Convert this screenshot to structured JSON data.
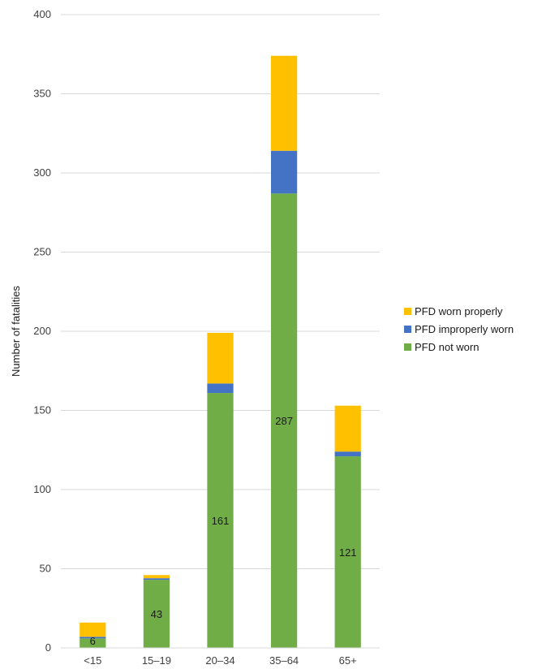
{
  "chart_data": {
    "type": "bar",
    "stacked": true,
    "categories": [
      "<15",
      "15–19",
      "20–34",
      "35–64",
      "65+"
    ],
    "series": [
      {
        "name": "PFD not worn",
        "values": [
          6,
          43,
          161,
          287,
          121
        ],
        "color": "#70ad47"
      },
      {
        "name": "PFD improperly worn",
        "values": [
          1,
          1,
          6,
          27,
          3
        ],
        "color": "#4472c4"
      },
      {
        "name": "PFD worn properly",
        "values": [
          9,
          2,
          32,
          60,
          29
        ],
        "color": "#ffc000"
      }
    ],
    "data_labels": {
      "series": "PFD not worn",
      "values": [
        "6",
        "43",
        "161",
        "287",
        "121"
      ]
    },
    "title": "",
    "xlabel": "",
    "ylabel": "Number of fatalities",
    "ylim": [
      0,
      400
    ],
    "yticks": [
      "0",
      "50",
      "100",
      "150",
      "200",
      "250",
      "300",
      "350",
      "400"
    ],
    "grid": true,
    "legend_position": "right",
    "legend_order": [
      "PFD worn properly",
      "PFD improperly worn",
      "PFD not worn"
    ]
  }
}
